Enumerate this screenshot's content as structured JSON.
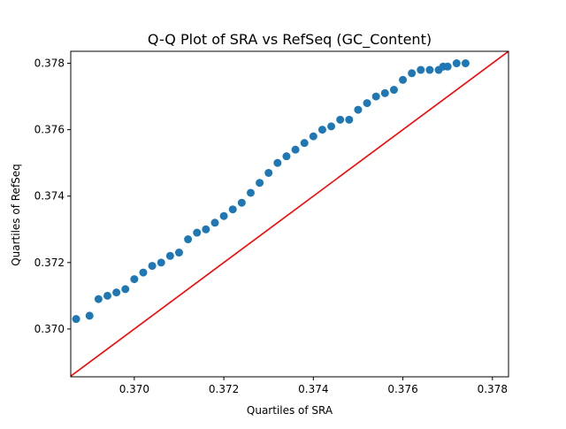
{
  "chart_data": {
    "type": "scatter",
    "title": "Q-Q Plot of SRA vs RefSeq (GC_Content)",
    "xlabel": "Quartiles of SRA",
    "ylabel": "Quartiles of RefSeq",
    "xlim": [
      0.36858,
      0.37836
    ],
    "ylim": [
      0.36856,
      0.37836
    ],
    "xticks": [
      0.37,
      0.372,
      0.374,
      0.376,
      0.378
    ],
    "xtick_labels": [
      "0.370",
      "0.372",
      "0.374",
      "0.376",
      "0.378"
    ],
    "yticks": [
      0.37,
      0.372,
      0.374,
      0.376,
      0.378
    ],
    "ytick_labels": [
      "0.370",
      "0.372",
      "0.374",
      "0.376",
      "0.378"
    ],
    "grid": false,
    "colors": {
      "points": "#1f77b4",
      "reference_line": "#ff0000"
    },
    "reference_line": {
      "x": [
        0.36858,
        0.37836
      ],
      "y": [
        0.36858,
        0.37836
      ]
    },
    "series": [
      {
        "x": [
          0.3687,
          0.369,
          0.3692,
          0.3694,
          0.3696,
          0.3698,
          0.37,
          0.3702,
          0.3704,
          0.3706,
          0.3708,
          0.371,
          0.3712,
          0.3714,
          0.3716,
          0.3718,
          0.372,
          0.3722,
          0.3724,
          0.3726,
          0.3728,
          0.373,
          0.3732,
          0.3734,
          0.3736,
          0.3738,
          0.374,
          0.3742,
          0.3744,
          0.3746,
          0.3748,
          0.375,
          0.3752,
          0.3754,
          0.3756,
          0.3758,
          0.376,
          0.3762,
          0.3764,
          0.3766,
          0.3768,
          0.3769,
          0.377,
          0.3772,
          0.3774
        ],
        "y": [
          0.3703,
          0.3704,
          0.3709,
          0.371,
          0.3711,
          0.3712,
          0.3715,
          0.3717,
          0.3719,
          0.372,
          0.3722,
          0.3723,
          0.3727,
          0.3729,
          0.373,
          0.3732,
          0.3734,
          0.3736,
          0.3738,
          0.3741,
          0.3744,
          0.3747,
          0.375,
          0.3752,
          0.3754,
          0.3756,
          0.3758,
          0.376,
          0.3761,
          0.3763,
          0.3763,
          0.3766,
          0.3768,
          0.377,
          0.3771,
          0.3772,
          0.3775,
          0.3777,
          0.3778,
          0.3778,
          0.3778,
          0.3779,
          0.3779,
          0.378,
          0.378
        ]
      }
    ]
  }
}
